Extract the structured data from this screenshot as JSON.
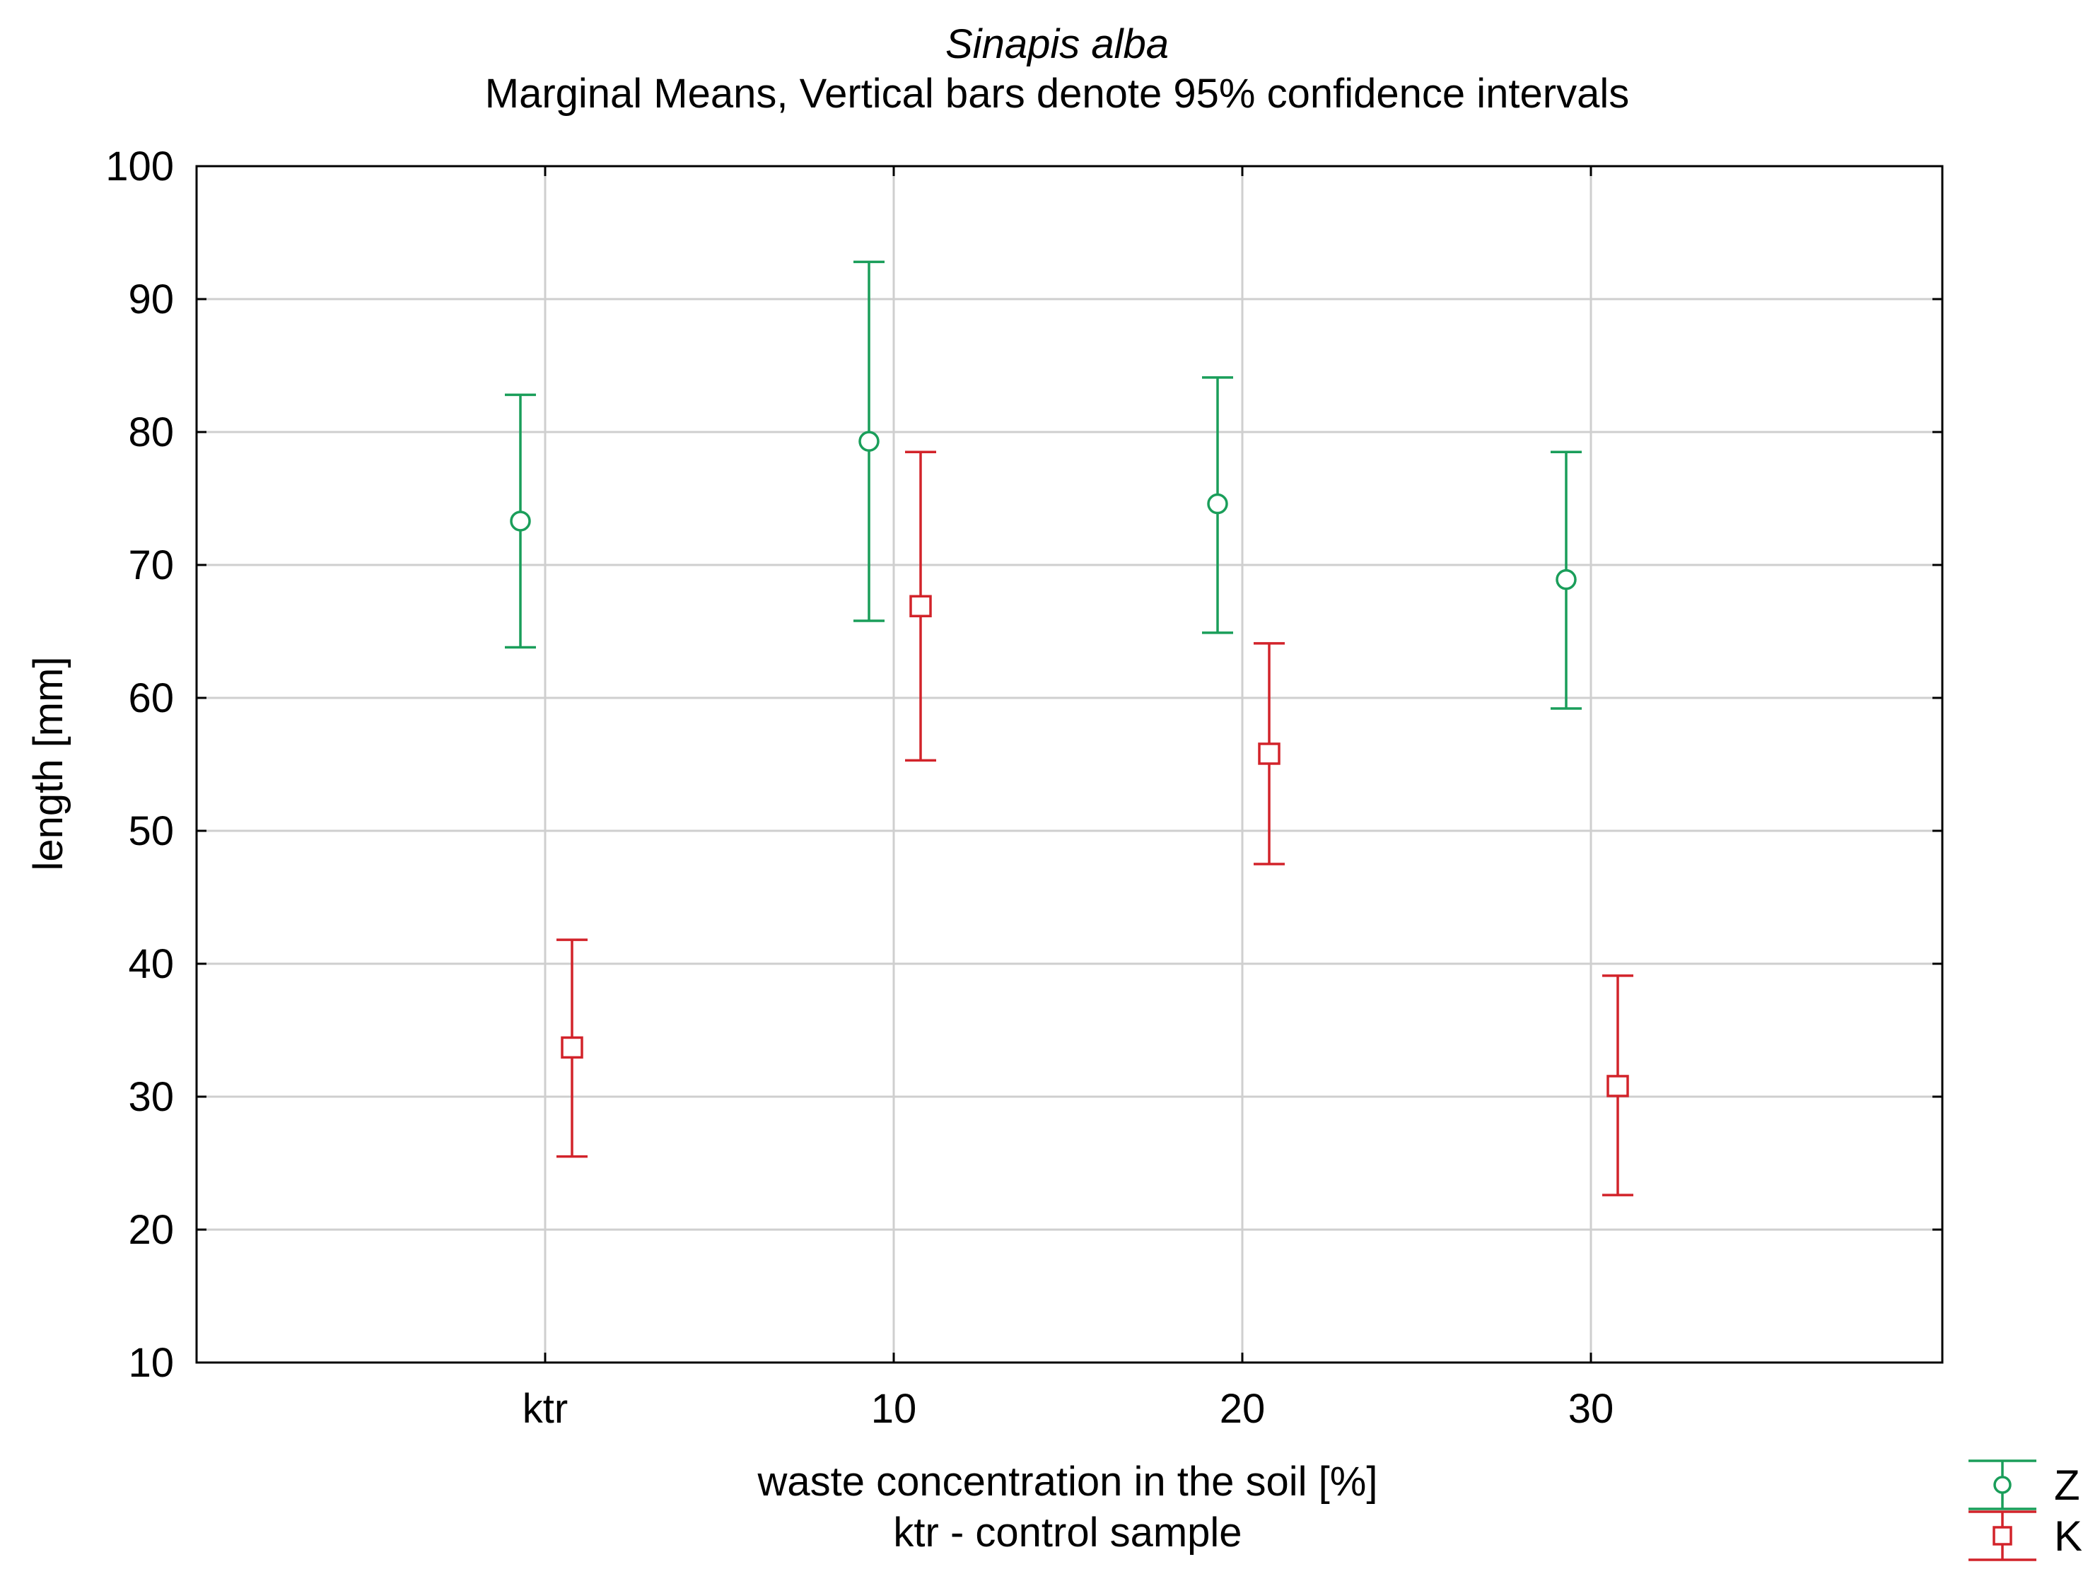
{
  "chart_data": {
    "type": "scatter",
    "title": "Sinapis alba",
    "subtitle": "Marginal Means, Vertical bars denote 95% confidence intervals",
    "xlabel": "waste concentration in the soil [%]",
    "xlabel_note": "ktr - control sample",
    "ylabel": "length [mm]",
    "ylim": [
      10,
      100
    ],
    "yticks": [
      "10",
      "20",
      "30",
      "40",
      "50",
      "60",
      "70",
      "80",
      "90",
      "100"
    ],
    "categories": [
      "ktr",
      "10",
      "20",
      "30"
    ],
    "grid": true,
    "legend_position": "bottom-right",
    "series": [
      {
        "name": "Z",
        "color": "#1a9e5a",
        "marker": "circle",
        "values": [
          73.3,
          79.3,
          74.6,
          68.9
        ],
        "ci_low": [
          63.8,
          65.8,
          64.9,
          59.2
        ],
        "ci_high": [
          82.8,
          92.8,
          84.1,
          78.5
        ]
      },
      {
        "name": "K",
        "color": "#d2232a",
        "marker": "square",
        "values": [
          33.7,
          66.9,
          55.8,
          30.8
        ],
        "ci_low": [
          25.5,
          55.3,
          47.5,
          22.6
        ],
        "ci_high": [
          41.8,
          78.5,
          64.1,
          39.1
        ]
      }
    ]
  }
}
